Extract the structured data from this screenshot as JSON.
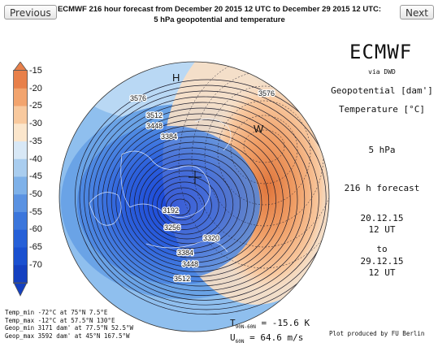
{
  "nav": {
    "previous": "Previous",
    "next": "Next"
  },
  "title": {
    "line1": "ECMWF 216 hour forecast from December 20 2015 12 UTC to December 29 2015 12 UTC:",
    "line2": "5 hPa geopotential and temperature"
  },
  "colorbar": {
    "labels": [
      "-15",
      "-20",
      "-25",
      "-30",
      "-35",
      "-40",
      "-45",
      "-50",
      "-55",
      "-60",
      "-65",
      "-70"
    ],
    "colors": [
      "#e8804a",
      "#f2a46e",
      "#f8c99e",
      "#fbe6cc",
      "#d8e8f6",
      "#a9cdef",
      "#7eb1e9",
      "#5a92e2",
      "#3b76dc",
      "#2660d8",
      "#1a50d0",
      "#1440c0"
    ]
  },
  "map": {
    "contour_labels": [
      "3576",
      "3576",
      "3512",
      "3448",
      "3384",
      "3192",
      "3256",
      "3320",
      "3384",
      "3448",
      "3512"
    ],
    "high_marker": "H",
    "warm_marker": "W"
  },
  "branding": {
    "ecmwf": "ECMWF",
    "via": "via DWD",
    "geopotential": "Geopotential [dam']",
    "temperature": "Temperature [°C]",
    "level": "5 hPa",
    "forecast": "216 h forecast",
    "start_date": "20.12.15",
    "start_time": "12 UT",
    "to": "to",
    "end_date": "29.12.15",
    "end_time": "12 UT"
  },
  "stats": {
    "temp_min": "Temp_min  -72°C at 75°N 7.5°E",
    "temp_max": "Temp_max  -12°C at 57.5°N 130°E",
    "geop_min": "Geop_min  3171 dam' at 77.5°N 52.5°W",
    "geop_max": "Geop_max  3592 dam' at 45°N 167.5°W"
  },
  "means": {
    "t_sym": "T",
    "t_sub": "90N-60N",
    "t_val": "= -15.6 K",
    "u_sym": "U",
    "u_sub": "60N",
    "u_val": "= 64.6 m/s"
  },
  "credit": "Plot produced by FU Berlin"
}
